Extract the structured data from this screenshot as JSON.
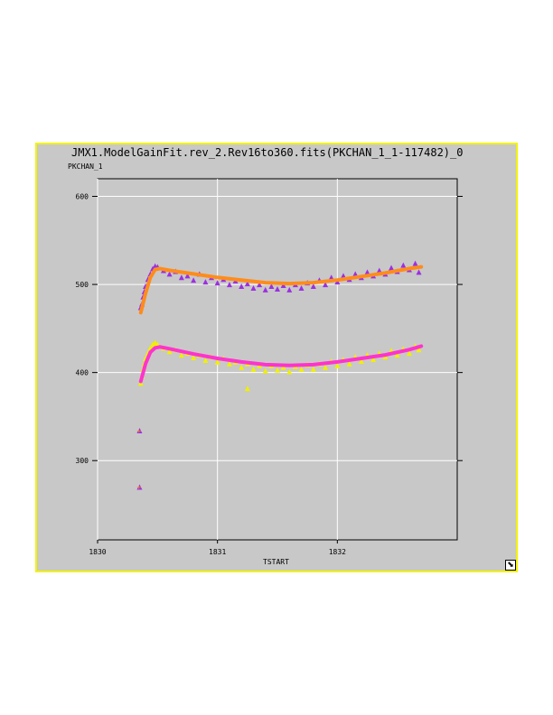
{
  "window": {
    "resize_icon": "resize-corner-icon"
  },
  "chart_data": {
    "type": "scatter",
    "title": "JMX1.ModelGainFit.rev_2.Rev16to360.fits(PKCHAN_1_1-117482)_0",
    "xlabel": "TSTART",
    "ylabel": "PKCHAN_1",
    "xlim": [
      1830,
      1833
    ],
    "ylim": [
      210,
      620
    ],
    "xticks": [
      1830,
      1831,
      1832
    ],
    "xtick_labels": [
      "1830",
      "1831",
      "1832"
    ],
    "yticks": [
      300,
      400,
      500,
      600
    ],
    "ytick_labels": [
      "300",
      "400",
      "500",
      "600"
    ],
    "grid": true,
    "colors": {
      "upper_points": "#9b30e0",
      "upper_fit": "#ff8c1a",
      "lower_points": "#f0f000",
      "lower_fit": "#ff33cc",
      "panel_border": "#f2f20a",
      "panel_bg": "#c8c8c8"
    },
    "series": [
      {
        "role": "upper-data",
        "marker": "triangle",
        "points": [
          [
            1830.36,
            474
          ],
          [
            1830.37,
            478
          ],
          [
            1830.38,
            486
          ],
          [
            1830.39,
            492
          ],
          [
            1830.4,
            498
          ],
          [
            1830.42,
            506
          ],
          [
            1830.44,
            512
          ],
          [
            1830.46,
            518
          ],
          [
            1830.48,
            521
          ],
          [
            1830.5,
            520
          ],
          [
            1830.55,
            516
          ],
          [
            1830.6,
            512
          ],
          [
            1830.65,
            515
          ],
          [
            1830.7,
            508
          ],
          [
            1830.75,
            510
          ],
          [
            1830.8,
            505
          ],
          [
            1830.85,
            512
          ],
          [
            1830.9,
            503
          ],
          [
            1830.95,
            508
          ],
          [
            1831.0,
            502
          ],
          [
            1831.05,
            506
          ],
          [
            1831.1,
            500
          ],
          [
            1831.15,
            504
          ],
          [
            1831.2,
            498
          ],
          [
            1831.25,
            501
          ],
          [
            1831.3,
            496
          ],
          [
            1831.35,
            500
          ],
          [
            1831.4,
            494
          ],
          [
            1831.45,
            498
          ],
          [
            1831.5,
            495
          ],
          [
            1831.55,
            499
          ],
          [
            1831.6,
            494
          ],
          [
            1831.65,
            500
          ],
          [
            1831.7,
            496
          ],
          [
            1831.75,
            502
          ],
          [
            1831.8,
            498
          ],
          [
            1831.85,
            505
          ],
          [
            1831.9,
            500
          ],
          [
            1831.95,
            508
          ],
          [
            1832.0,
            503
          ],
          [
            1832.05,
            510
          ],
          [
            1832.1,
            506
          ],
          [
            1832.15,
            512
          ],
          [
            1832.2,
            508
          ],
          [
            1832.25,
            514
          ],
          [
            1832.3,
            510
          ],
          [
            1832.35,
            516
          ],
          [
            1832.4,
            512
          ],
          [
            1832.45,
            519
          ],
          [
            1832.5,
            515
          ],
          [
            1832.55,
            522
          ],
          [
            1832.6,
            517
          ],
          [
            1832.65,
            524
          ],
          [
            1832.68,
            514
          ]
        ]
      },
      {
        "role": "upper-fit",
        "marker": "line",
        "points": [
          [
            1830.36,
            468
          ],
          [
            1830.4,
            490
          ],
          [
            1830.44,
            508
          ],
          [
            1830.48,
            517
          ],
          [
            1830.52,
            518
          ],
          [
            1830.6,
            516
          ],
          [
            1830.8,
            512
          ],
          [
            1831.0,
            508
          ],
          [
            1831.2,
            505
          ],
          [
            1831.4,
            502
          ],
          [
            1831.6,
            501
          ],
          [
            1831.8,
            502
          ],
          [
            1832.0,
            505
          ],
          [
            1832.2,
            509
          ],
          [
            1832.4,
            513
          ],
          [
            1832.6,
            518
          ],
          [
            1832.7,
            520
          ]
        ]
      },
      {
        "role": "lower-data",
        "marker": "triangle",
        "points": [
          [
            1830.36,
            388
          ],
          [
            1830.37,
            396
          ],
          [
            1830.38,
            404
          ],
          [
            1830.39,
            410
          ],
          [
            1830.4,
            416
          ],
          [
            1830.42,
            422
          ],
          [
            1830.44,
            428
          ],
          [
            1830.46,
            432
          ],
          [
            1830.48,
            434
          ],
          [
            1830.5,
            432
          ],
          [
            1830.55,
            428
          ],
          [
            1830.6,
            424
          ],
          [
            1830.65,
            426
          ],
          [
            1830.7,
            420
          ],
          [
            1830.75,
            422
          ],
          [
            1830.8,
            417
          ],
          [
            1830.85,
            420
          ],
          [
            1830.9,
            414
          ],
          [
            1830.95,
            418
          ],
          [
            1831.0,
            412
          ],
          [
            1831.05,
            416
          ],
          [
            1831.1,
            410
          ],
          [
            1831.15,
            412
          ],
          [
            1831.2,
            406
          ],
          [
            1831.25,
            410
          ],
          [
            1831.25,
            382
          ],
          [
            1831.3,
            404
          ],
          [
            1831.35,
            408
          ],
          [
            1831.4,
            402
          ],
          [
            1831.45,
            408
          ],
          [
            1831.5,
            403
          ],
          [
            1831.55,
            406
          ],
          [
            1831.6,
            401
          ],
          [
            1831.65,
            407
          ],
          [
            1831.7,
            404
          ],
          [
            1831.75,
            409
          ],
          [
            1831.8,
            404
          ],
          [
            1831.85,
            410
          ],
          [
            1831.9,
            406
          ],
          [
            1831.95,
            413
          ],
          [
            1832.0,
            408
          ],
          [
            1832.05,
            415
          ],
          [
            1832.1,
            410
          ],
          [
            1832.15,
            418
          ],
          [
            1832.2,
            413
          ],
          [
            1832.25,
            420
          ],
          [
            1832.3,
            415
          ],
          [
            1832.35,
            422
          ],
          [
            1832.4,
            418
          ],
          [
            1832.45,
            425
          ],
          [
            1832.5,
            420
          ],
          [
            1832.55,
            427
          ],
          [
            1832.6,
            422
          ],
          [
            1832.65,
            430
          ],
          [
            1832.68,
            426
          ]
        ]
      },
      {
        "role": "lower-fit",
        "marker": "line",
        "points": [
          [
            1830.36,
            390
          ],
          [
            1830.4,
            410
          ],
          [
            1830.44,
            423
          ],
          [
            1830.48,
            428
          ],
          [
            1830.52,
            429
          ],
          [
            1830.6,
            427
          ],
          [
            1830.8,
            421
          ],
          [
            1831.0,
            416
          ],
          [
            1831.2,
            412
          ],
          [
            1831.4,
            409
          ],
          [
            1831.6,
            408
          ],
          [
            1831.8,
            409
          ],
          [
            1832.0,
            412
          ],
          [
            1832.2,
            416
          ],
          [
            1832.4,
            420
          ],
          [
            1832.6,
            426
          ],
          [
            1832.7,
            430
          ]
        ]
      },
      {
        "role": "outliers",
        "marker": "triangle",
        "points": [
          [
            1830.35,
            334
          ],
          [
            1830.35,
            270
          ]
        ]
      }
    ]
  }
}
